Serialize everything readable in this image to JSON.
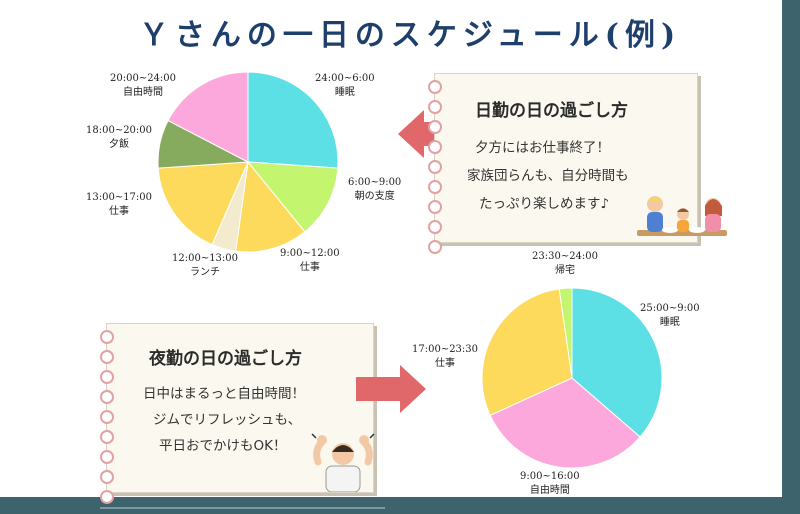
{
  "title": "Ｙさんの一日のスケジュール(例)",
  "colors": {
    "sleep": "#5ddfe6",
    "morning": "#c3f56e",
    "work": "#fdd95c",
    "lunch": "#f4ebcf",
    "dinner": "#86ab5e",
    "free": "#fca8dc",
    "home": "#c3f56e",
    "arrow": "#e0676a",
    "background": "#3d636c"
  },
  "day_note": {
    "title": "日勤の日の過ごし方",
    "lines": [
      "夕方にはお仕事終了！",
      "家族団らんも、自分時間も",
      "たっぷり楽しめます♪"
    ]
  },
  "night_note": {
    "title": "夜勤の日の過ごし方",
    "lines": [
      "日中はまるっと自由時間！",
      "ジムでリフレッシュも、",
      "平日おでかけもOK！"
    ]
  },
  "chart_data": [
    {
      "type": "pie",
      "title": "",
      "slices": [
        {
          "time": "24:00~6:00",
          "label": "睡眠",
          "hours": 6,
          "color": "#5ddfe6"
        },
        {
          "time": "6:00~9:00",
          "label": "朝の支度",
          "hours": 3,
          "color": "#c3f56e"
        },
        {
          "time": "9:00~12:00",
          "label": "仕事",
          "hours": 3,
          "color": "#fdd95c"
        },
        {
          "time": "12:00~13:00",
          "label": "ランチ",
          "hours": 1,
          "color": "#f4ebcf"
        },
        {
          "time": "13:00~17:00",
          "label": "仕事",
          "hours": 4,
          "color": "#fdd95c"
        },
        {
          "time": "18:00~20:00",
          "label": "夕飯",
          "hours": 2,
          "color": "#86ab5e"
        },
        {
          "time": "20:00~24:00",
          "label": "自由時間",
          "hours": 4,
          "color": "#fca8dc"
        }
      ]
    },
    {
      "type": "pie",
      "title": "",
      "slices": [
        {
          "time": "25:00~9:00",
          "label": "睡眠",
          "hours": 8,
          "color": "#5ddfe6"
        },
        {
          "time": "9:00~16:00",
          "label": "自由時間",
          "hours": 7,
          "color": "#fca8dc"
        },
        {
          "time": "17:00~23:30",
          "label": "仕事",
          "hours": 6.5,
          "color": "#fdd95c"
        },
        {
          "time": "23:30~24:00",
          "label": "帰宅",
          "hours": 0.5,
          "color": "#c3f56e"
        }
      ]
    }
  ]
}
